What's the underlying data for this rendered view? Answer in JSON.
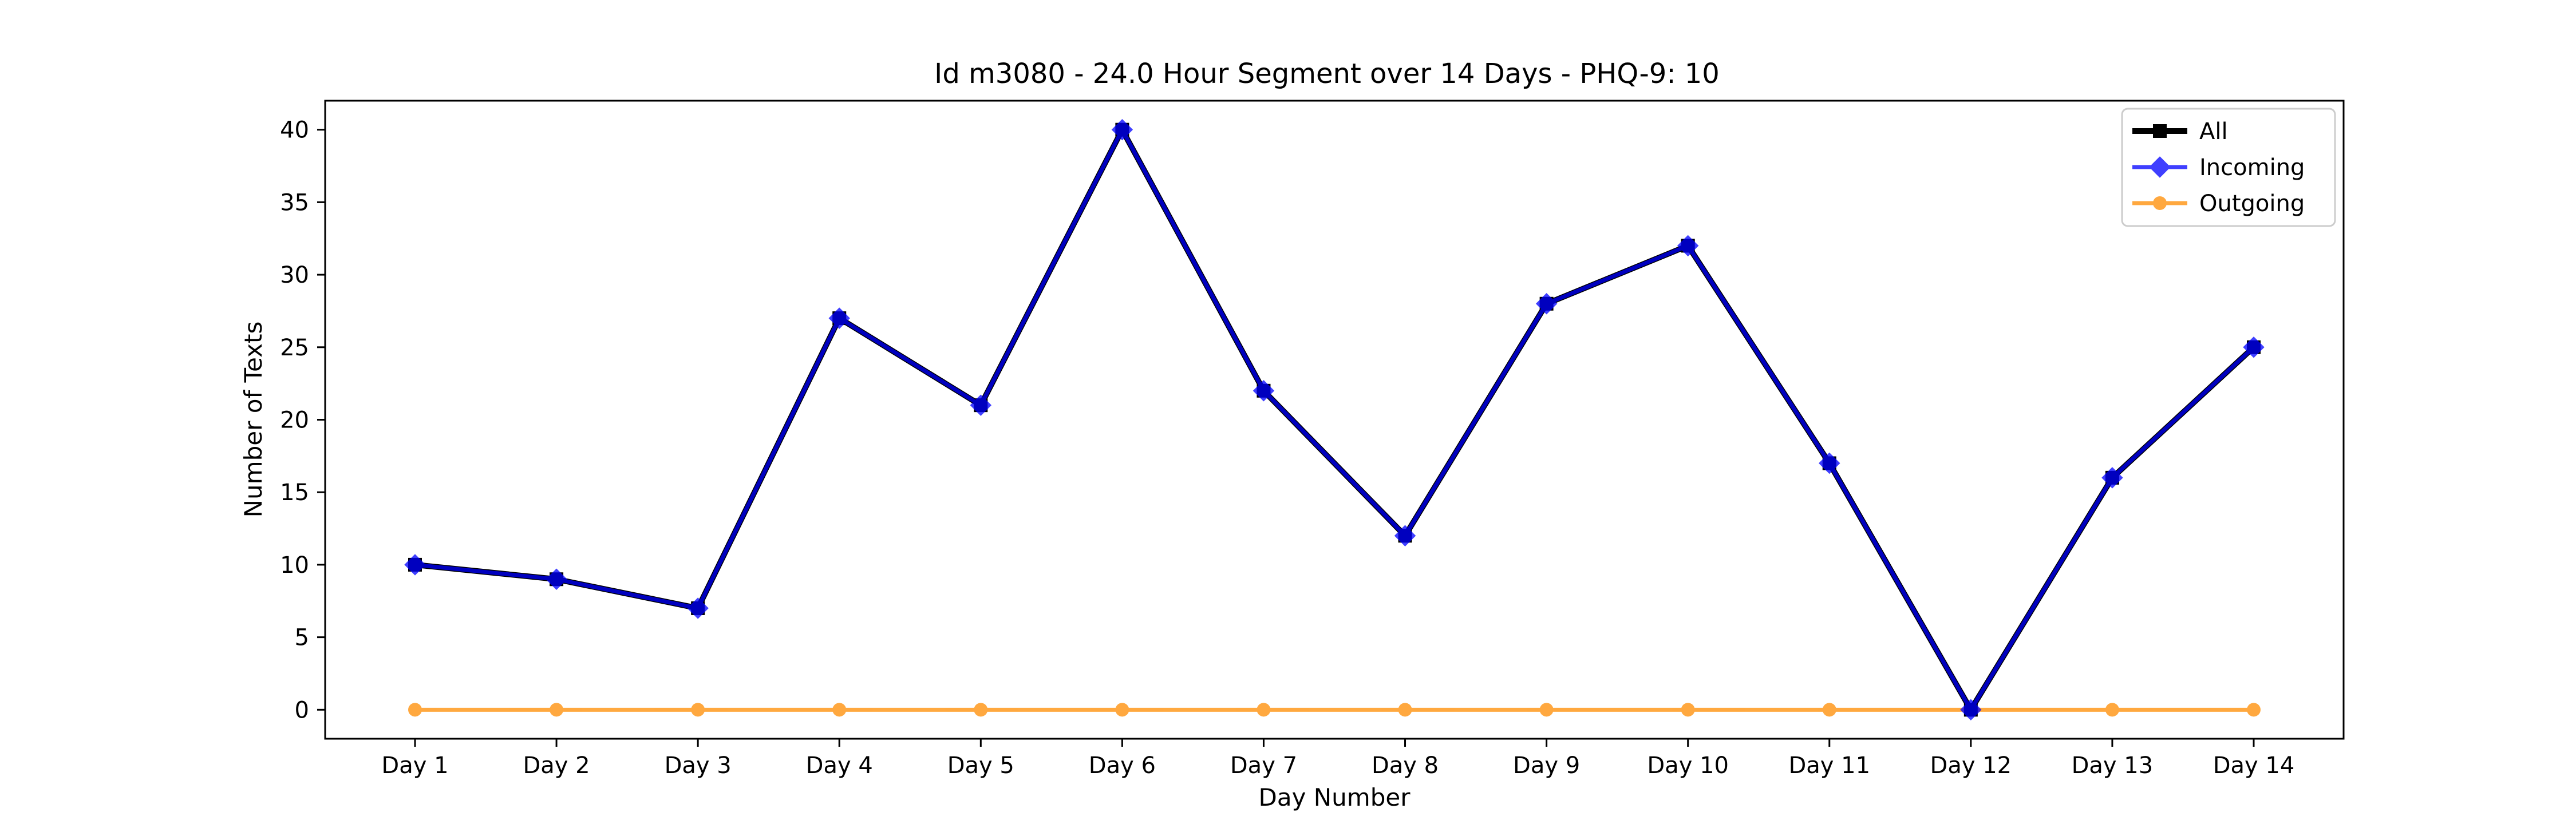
{
  "chart_data": {
    "type": "line",
    "title": "Id m3080 - 24.0 Hour Segment over 14 Days - PHQ-9: 10",
    "xlabel": "Day Number",
    "ylabel": "Number of Texts",
    "categories": [
      "Day 1",
      "Day 2",
      "Day 3",
      "Day 4",
      "Day 5",
      "Day 6",
      "Day 7",
      "Day 8",
      "Day 9",
      "Day 10",
      "Day 11",
      "Day 12",
      "Day 13",
      "Day 14"
    ],
    "ylim": [
      -2,
      42
    ],
    "yticks": [
      0,
      5,
      10,
      15,
      20,
      25,
      30,
      35,
      40
    ],
    "grid": false,
    "legend_position": "top-right",
    "series": [
      {
        "name": "All",
        "color": "#000000",
        "marker": "square",
        "values": [
          10,
          9,
          7,
          27,
          21,
          40,
          22,
          12,
          28,
          32,
          17,
          0,
          16,
          25
        ]
      },
      {
        "name": "Incoming",
        "color": "#0000ff",
        "marker": "diamond",
        "values": [
          10,
          9,
          7,
          27,
          21,
          40,
          22,
          12,
          28,
          32,
          17,
          0,
          16,
          25
        ]
      },
      {
        "name": "Outgoing",
        "color": "#ff8c00",
        "marker": "circle",
        "values": [
          0,
          0,
          0,
          0,
          0,
          0,
          0,
          0,
          0,
          0,
          0,
          0,
          0,
          0
        ]
      }
    ]
  }
}
